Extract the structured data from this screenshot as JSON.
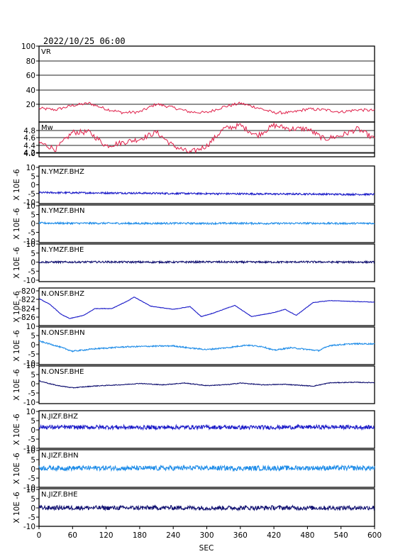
{
  "chart_data": {
    "type": "line",
    "title": "2022/10/25 06:00",
    "xlabel": "SEC",
    "xlim": [
      0,
      600
    ],
    "x_ticks": [
      "0",
      "60",
      "120",
      "180",
      "240",
      "300",
      "360",
      "420",
      "480",
      "540",
      "600"
    ],
    "panels": [
      {
        "label": "VR",
        "ylim": [
          0,
          100
        ],
        "y_ticks": [
          "100",
          "80",
          "60",
          "40",
          "20"
        ],
        "grid": true,
        "color": "#e0204a",
        "series": {
          "x": [
            0,
            30,
            60,
            90,
            120,
            150,
            180,
            210,
            240,
            270,
            300,
            330,
            360,
            390,
            420,
            450,
            480,
            510,
            540,
            570,
            600
          ],
          "y": [
            14,
            12,
            18,
            21,
            13,
            8,
            9,
            20,
            15,
            9,
            8,
            16,
            21,
            15,
            8,
            8,
            13,
            12,
            9,
            12,
            11
          ]
        }
      },
      {
        "label": "Mw",
        "ylim": [
          3.9,
          4.9
        ],
        "y_ticks": [
          "4.8",
          "4.6",
          "4.4",
          "4.2",
          "4.0"
        ],
        "grid": true,
        "color": "#e0204a",
        "series": {
          "x": [
            0,
            30,
            60,
            90,
            120,
            150,
            180,
            210,
            240,
            270,
            300,
            330,
            360,
            390,
            420,
            450,
            480,
            510,
            540,
            570,
            600
          ],
          "y": [
            4.3,
            4.1,
            4.6,
            4.6,
            4.2,
            4.3,
            4.4,
            4.6,
            4.2,
            4.0,
            4.2,
            4.7,
            4.8,
            4.5,
            4.8,
            4.7,
            4.7,
            4.4,
            4.5,
            4.7,
            4.4
          ]
        }
      },
      {
        "label": "N.YMZF.BHZ",
        "ylim": [
          -10,
          10
        ],
        "y_ticks": [
          "10",
          "5",
          "0",
          "-5",
          "-10"
        ],
        "ylabel": "X 10E -6",
        "color": "#1a1ac8",
        "series": {
          "x": [
            0,
            60,
            120,
            180,
            240,
            300,
            360,
            420,
            480,
            540,
            600
          ],
          "y": [
            -4.5,
            -4.6,
            -4.7,
            -4.8,
            -5.0,
            -5.1,
            -5.2,
            -5.3,
            -5.3,
            -5.5,
            -5.5
          ]
        }
      },
      {
        "label": "N.YMZF.BHN",
        "ylim": [
          -10,
          10
        ],
        "y_ticks": [
          "10",
          "5",
          "0",
          "-5",
          "-10"
        ],
        "ylabel": "X 10E -6",
        "color": "#1e8ce8",
        "series": {
          "x": [
            0,
            60,
            120,
            180,
            240,
            300,
            360,
            420,
            480,
            540,
            600
          ],
          "y": [
            0.2,
            0.1,
            0.1,
            0.0,
            0.1,
            0.0,
            0.1,
            0.0,
            0.1,
            0.0,
            0.1
          ]
        }
      },
      {
        "label": "N.YMZF.BHE",
        "ylim": [
          -10,
          10
        ],
        "y_ticks": [
          "10",
          "5",
          "0",
          "-5",
          "-10"
        ],
        "ylabel": "X 10E -6",
        "color": "#101070",
        "series": {
          "x": [
            0,
            60,
            120,
            180,
            240,
            300,
            360,
            420,
            480,
            540,
            600
          ],
          "y": [
            0.0,
            0.0,
            0.1,
            0.0,
            0.0,
            0.1,
            0.0,
            0.0,
            0.1,
            0.0,
            0.0
          ]
        }
      },
      {
        "label": "N.ONSF.BHZ",
        "ylim": [
          -827,
          -819
        ],
        "y_ticks": [
          "-820",
          "-822",
          "-824",
          "-826"
        ],
        "ylabel": "X 10E -6",
        "color": "#1a1ac8",
        "series": {
          "x": [
            0,
            20,
            40,
            55,
            80,
            100,
            130,
            160,
            170,
            200,
            240,
            270,
            290,
            310,
            350,
            380,
            420,
            440,
            460,
            490,
            520,
            560,
            600
          ],
          "y": [
            -821.3,
            -822.8,
            -825.3,
            -826.3,
            -825.5,
            -823.8,
            -823.8,
            -821.8,
            -820.9,
            -823.2,
            -824.0,
            -823.3,
            -825.8,
            -825.0,
            -823.0,
            -825.8,
            -824.8,
            -824.0,
            -825.5,
            -822.3,
            -821.8,
            -822.0,
            -822.2
          ]
        }
      },
      {
        "label": "N.ONSF.BHN",
        "ylim": [
          -10,
          10
        ],
        "y_ticks": [
          "10",
          "5",
          "0",
          "-5",
          "-10"
        ],
        "ylabel": "X 10E -6",
        "color": "#1e8ce8",
        "series": {
          "x": [
            0,
            30,
            60,
            100,
            150,
            200,
            240,
            270,
            300,
            340,
            370,
            400,
            420,
            450,
            500,
            520,
            560,
            600
          ],
          "y": [
            2.0,
            -0.5,
            -3.5,
            -2.2,
            -1.2,
            -0.8,
            -0.6,
            -1.8,
            -2.6,
            -1.5,
            -0.2,
            -1.0,
            -3.0,
            -1.6,
            -3.2,
            -0.4,
            0.5,
            0.5
          ]
        }
      },
      {
        "label": "N.ONSF.BHE",
        "ylim": [
          -10,
          10
        ],
        "y_ticks": [
          "10",
          "5",
          "0",
          "-5",
          "-10"
        ],
        "ylabel": "X 10E -6",
        "color": "#101070",
        "series": {
          "x": [
            0,
            30,
            60,
            100,
            150,
            180,
            220,
            260,
            300,
            340,
            360,
            400,
            440,
            490,
            520,
            560,
            600
          ],
          "y": [
            1.6,
            -0.8,
            -2.2,
            -1.2,
            -0.5,
            0.2,
            -0.6,
            0.4,
            -1.0,
            -0.4,
            0.4,
            -0.6,
            -0.3,
            -1.3,
            0.5,
            0.8,
            0.6
          ]
        }
      },
      {
        "label": "N.JIZF.BHZ",
        "ylim": [
          -10,
          10
        ],
        "y_ticks": [
          "10",
          "5",
          "0",
          "-5",
          "-10"
        ],
        "ylabel": "X 10E -6",
        "color": "#1a1ac8",
        "series": {
          "x": [
            0,
            60,
            120,
            180,
            240,
            300,
            360,
            420,
            480,
            540,
            600
          ],
          "y": [
            1.5,
            1.4,
            1.5,
            1.3,
            1.4,
            1.5,
            1.3,
            1.4,
            1.5,
            1.5,
            1.4
          ]
        }
      },
      {
        "label": "N.JIZF.BHN",
        "ylim": [
          -10,
          10
        ],
        "y_ticks": [
          "10",
          "5",
          "0",
          "-5",
          "-10"
        ],
        "ylabel": "X 10E -6",
        "color": "#1e8ce8",
        "series": {
          "x": [
            0,
            60,
            120,
            180,
            240,
            300,
            360,
            420,
            480,
            540,
            600
          ],
          "y": [
            0.5,
            0.4,
            0.5,
            0.3,
            0.4,
            0.5,
            0.3,
            0.4,
            0.5,
            0.5,
            0.4
          ]
        }
      },
      {
        "label": "N.JIZF.BHE",
        "ylim": [
          -10,
          10
        ],
        "y_ticks": [
          "10",
          "5",
          "0",
          "-5",
          "-10"
        ],
        "ylabel": "X 10E -6",
        "color": "#101070",
        "series": {
          "x": [
            0,
            60,
            120,
            180,
            240,
            300,
            360,
            420,
            480,
            540,
            600
          ],
          "y": [
            0.0,
            0.1,
            0.0,
            0.0,
            0.1,
            0.0,
            0.0,
            0.1,
            0.0,
            0.0,
            0.1
          ]
        }
      }
    ]
  }
}
